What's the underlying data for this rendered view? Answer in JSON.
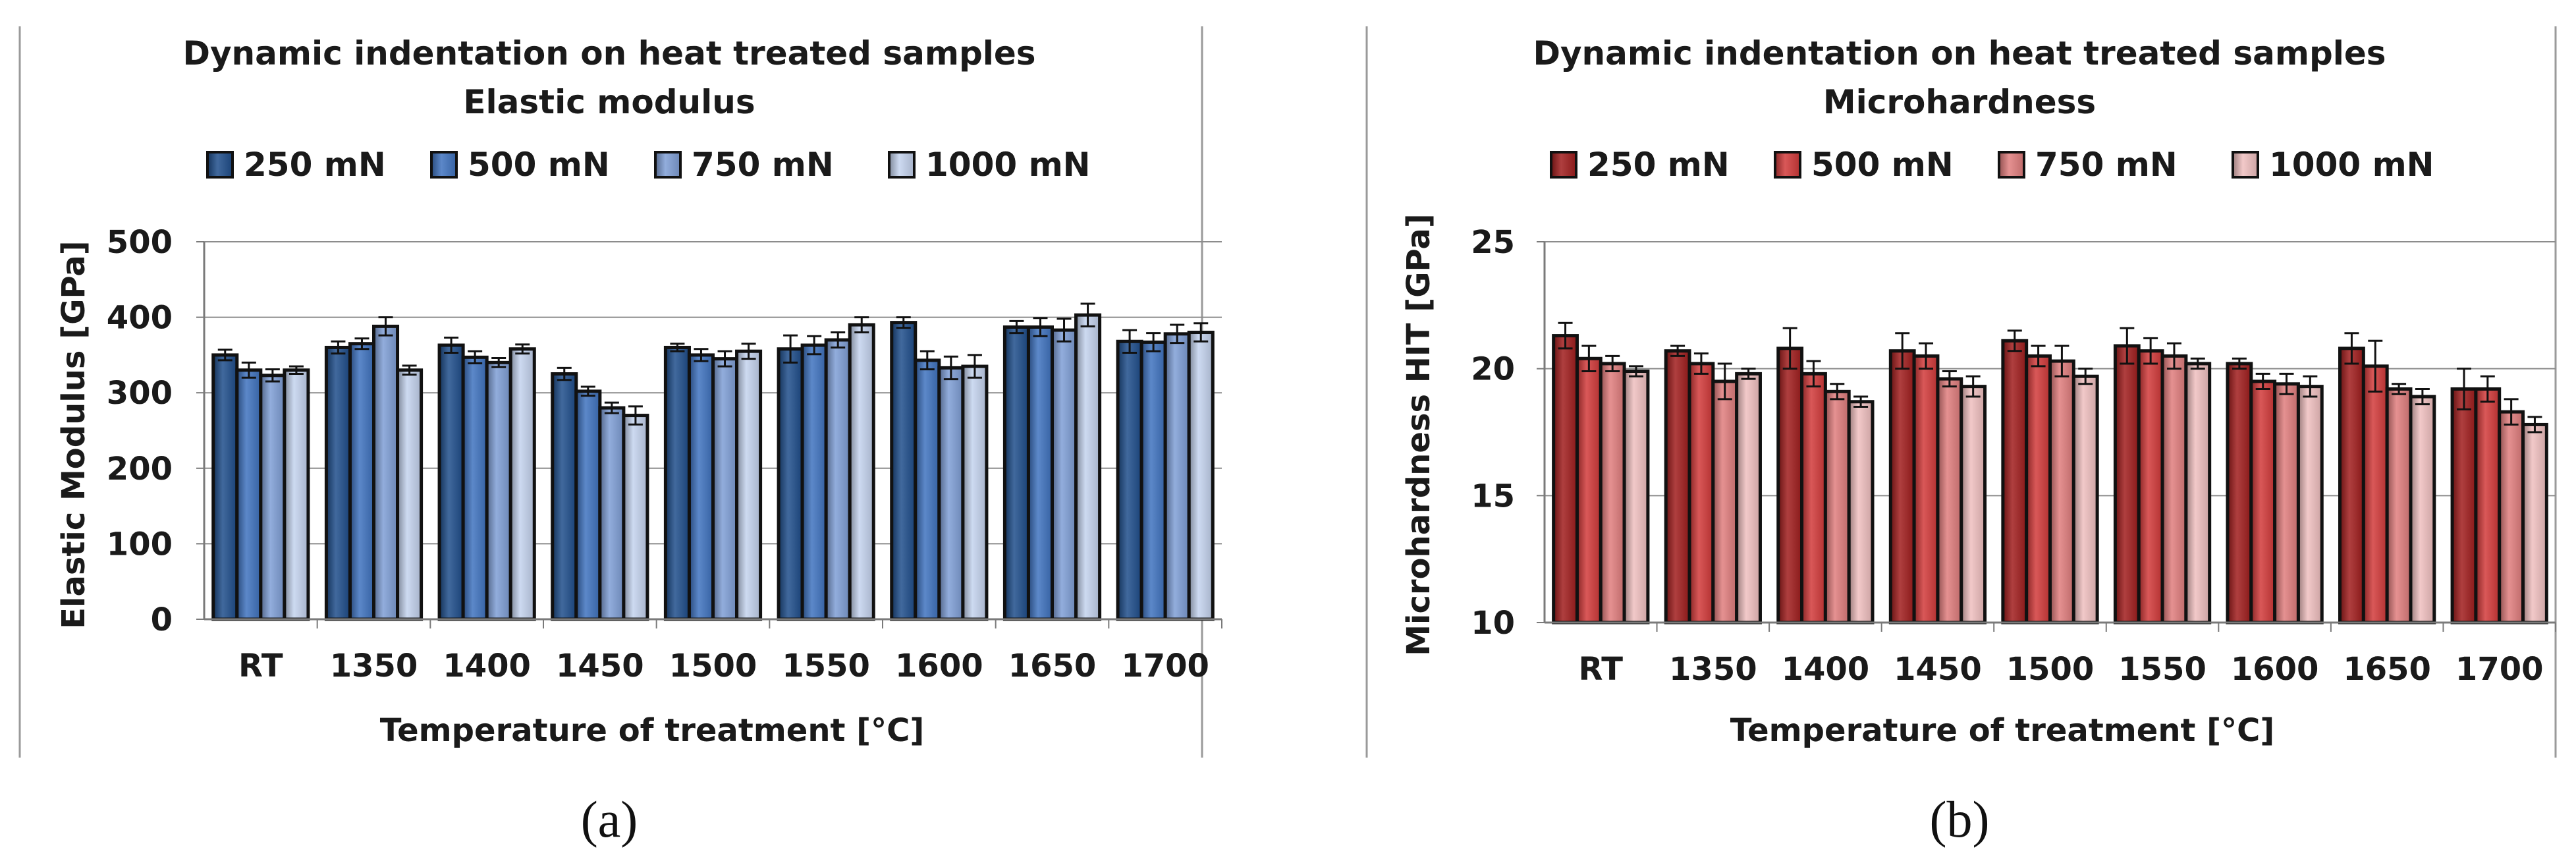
{
  "chart_data": [
    {
      "type": "bar",
      "title": "Dynamic indentation on heat treated samples",
      "subtitle": "Elastic modulus",
      "xlabel": "Temperature of treatment [°C]",
      "ylabel": "Elastic Modulus [GPa]",
      "ylim": [
        0,
        500
      ],
      "yticks": [
        0,
        100,
        200,
        300,
        400,
        500
      ],
      "grid": true,
      "legend_position": "top",
      "categories": [
        "RT",
        "1350",
        "1400",
        "1450",
        "1500",
        "1550",
        "1600",
        "1650",
        "1700"
      ],
      "series": [
        {
          "name": "250 mN",
          "color": "#1f4e8c",
          "values": [
            350,
            360,
            363,
            325,
            360,
            358,
            393,
            387,
            368
          ],
          "errors": [
            7,
            8,
            10,
            8,
            5,
            18,
            7,
            8,
            15
          ]
        },
        {
          "name": "500 mN",
          "color": "#3f73c0",
          "values": [
            330,
            365,
            347,
            302,
            350,
            363,
            343,
            387,
            367
          ],
          "errors": [
            10,
            7,
            8,
            6,
            8,
            12,
            12,
            12,
            12
          ]
        },
        {
          "name": "750 mN",
          "color": "#7f9fd6",
          "values": [
            323,
            388,
            340,
            280,
            345,
            370,
            333,
            383,
            378
          ],
          "errors": [
            8,
            12,
            6,
            7,
            10,
            10,
            15,
            15,
            12
          ]
        },
        {
          "name": "1000 mN",
          "color": "#c4d3ee",
          "values": [
            330,
            330,
            358,
            270,
            355,
            390,
            335,
            403,
            380
          ],
          "errors": [
            5,
            6,
            6,
            12,
            10,
            10,
            15,
            15,
            12
          ]
        }
      ]
    },
    {
      "type": "bar",
      "title": "Dynamic indentation on heat treated samples",
      "subtitle": "Microhardness",
      "xlabel": "Temperature of treatment [°C]",
      "ylabel": "Microhardness  HIT [GPa]",
      "ylim": [
        10,
        25
      ],
      "yticks": [
        10,
        15,
        20,
        25
      ],
      "grid": true,
      "legend_position": "top",
      "categories": [
        "RT",
        "1350",
        "1400",
        "1450",
        "1500",
        "1550",
        "1600",
        "1650",
        "1700"
      ],
      "series": [
        {
          "name": "250 mN",
          "color": "#a11d1d",
          "values": [
            21.3,
            20.7,
            20.8,
            20.7,
            21.1,
            20.9,
            20.2,
            20.8,
            19.2
          ],
          "errors": [
            0.5,
            0.2,
            0.8,
            0.7,
            0.4,
            0.7,
            0.2,
            0.6,
            0.8
          ]
        },
        {
          "name": "500 mN",
          "color": "#d23a3a",
          "values": [
            20.4,
            20.2,
            19.8,
            20.5,
            20.5,
            20.7,
            19.5,
            20.1,
            19.2
          ],
          "errors": [
            0.5,
            0.4,
            0.5,
            0.5,
            0.4,
            0.5,
            0.3,
            1.0,
            0.5
          ]
        },
        {
          "name": "750 mN",
          "color": "#e07d7d",
          "values": [
            20.2,
            19.5,
            19.1,
            19.6,
            20.3,
            20.5,
            19.4,
            19.2,
            18.3
          ],
          "errors": [
            0.3,
            0.7,
            0.3,
            0.3,
            0.6,
            0.5,
            0.4,
            0.2,
            0.5
          ]
        },
        {
          "name": "1000 mN",
          "color": "#f0c0c0",
          "values": [
            19.9,
            19.8,
            18.7,
            19.3,
            19.7,
            20.2,
            19.3,
            18.9,
            17.8
          ],
          "errors": [
            0.2,
            0.2,
            0.2,
            0.4,
            0.3,
            0.2,
            0.4,
            0.3,
            0.3
          ]
        }
      ]
    }
  ],
  "panel_labels": [
    "(a)",
    "(b)"
  ]
}
